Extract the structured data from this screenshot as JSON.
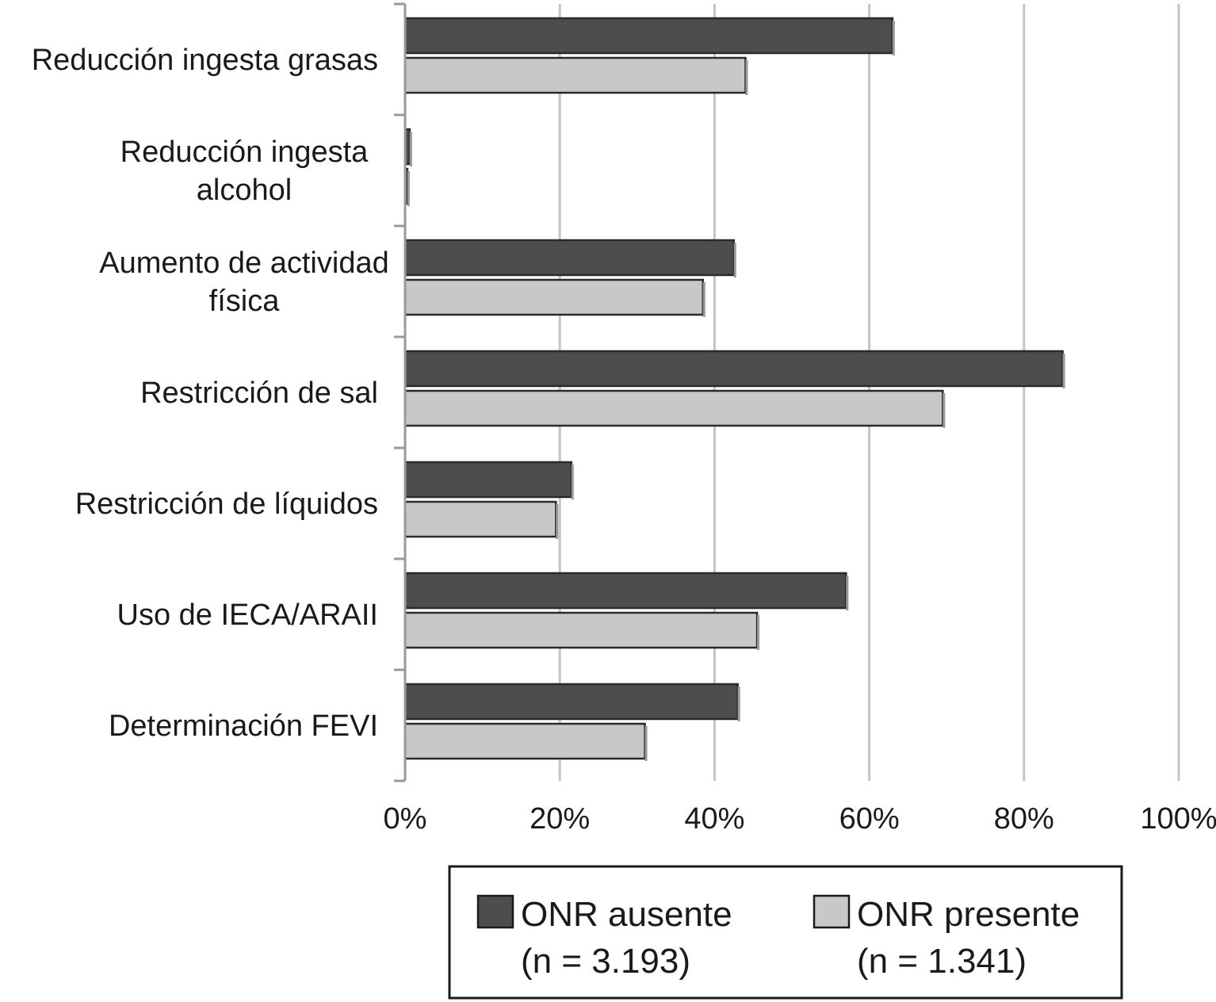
{
  "chart_data": {
    "type": "bar",
    "orientation": "horizontal",
    "categories": [
      [
        "Reducción ingesta grasas"
      ],
      [
        "Reducción ingesta",
        "alcohol"
      ],
      [
        "Aumento de actividad",
        "física"
      ],
      [
        "Restricción de sal"
      ],
      [
        "Restricción de líquidos"
      ],
      [
        "Uso de IECA/ARAII"
      ],
      [
        "Determinación FEVI"
      ]
    ],
    "series": [
      {
        "name": "ONR ausente",
        "name_line2": "(n = 3.193)",
        "color": "#4d4d4d",
        "values": [
          63,
          0.6,
          42.5,
          85,
          21.5,
          57,
          43
        ]
      },
      {
        "name": "ONR presente",
        "name_line2": "(n = 1.341)",
        "color": "#c8c8c8",
        "values": [
          44,
          0.3,
          38.5,
          69.5,
          19.5,
          45.5,
          31
        ]
      }
    ],
    "x_ticks": [
      "0%",
      "20%",
      "40%",
      "60%",
      "80%",
      "100%"
    ],
    "xlim": [
      0,
      100
    ],
    "grid": "vertical",
    "legend_position": "bottom"
  }
}
